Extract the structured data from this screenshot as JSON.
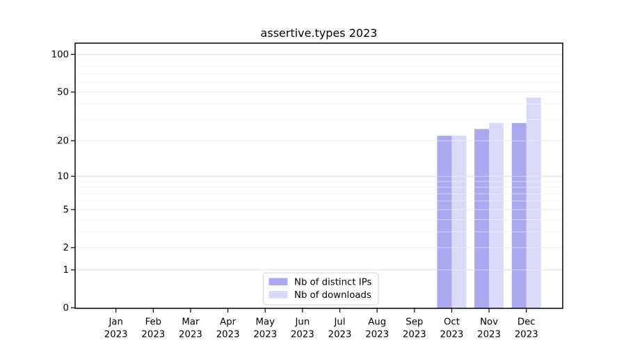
{
  "title": "assertive.types 2023",
  "chart_data": {
    "type": "bar",
    "title": "assertive.types 2023",
    "categories": [
      "Jan 2023",
      "Feb 2023",
      "Mar 2023",
      "Apr 2023",
      "May 2023",
      "Jun 2023",
      "Jul 2023",
      "Aug 2023",
      "Sep 2023",
      "Oct 2023",
      "Nov 2023",
      "Dec 2023"
    ],
    "months": [
      "Jan",
      "Feb",
      "Mar",
      "Apr",
      "May",
      "Jun",
      "Jul",
      "Aug",
      "Sep",
      "Oct",
      "Nov",
      "Dec"
    ],
    "year": "2023",
    "series": [
      {
        "name": "Nb of distinct IPs",
        "color": "#a9a9f0",
        "values": [
          null,
          null,
          null,
          null,
          null,
          null,
          null,
          null,
          null,
          22,
          25,
          28
        ]
      },
      {
        "name": "Nb of downloads",
        "color": "#d9d9f8",
        "values": [
          null,
          null,
          null,
          null,
          null,
          null,
          null,
          null,
          null,
          22,
          28,
          45
        ]
      }
    ],
    "y_ticks": [
      0,
      1,
      2,
      5,
      10,
      20,
      50,
      100
    ],
    "y_minor_gridlines": [
      3,
      4,
      6,
      7,
      8,
      9,
      30,
      40,
      60,
      70,
      80,
      90
    ],
    "y_scale": "log1p",
    "ylim": [
      0,
      123
    ],
    "xlabel": "",
    "ylabel": "",
    "grid": true,
    "legend_position": "bottom-center",
    "colors": {
      "grid_major": "#c9c9c9",
      "grid_mid": "#e1e1e1",
      "grid_minor": "#eeeeee",
      "axis": "#000000",
      "legend_border": "#d3d3d3"
    }
  }
}
